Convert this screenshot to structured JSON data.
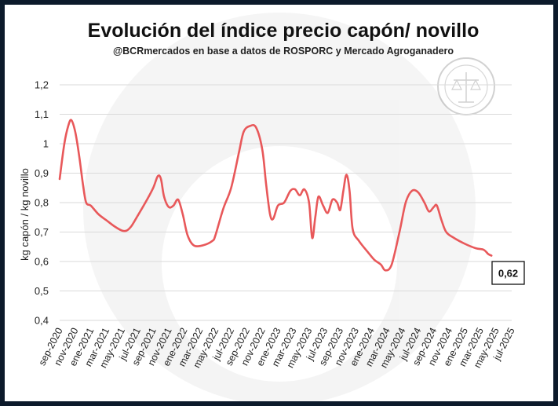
{
  "chart_data": {
    "type": "line",
    "title": "Evolución del índice precio capón/ novillo",
    "subtitle": "@BCRmercados  en base a datos de ROSPORC y Mercado Agroganadero",
    "ylabel": "kg capón / kg novillo",
    "xlabel": "",
    "ylim": [
      0.4,
      1.2
    ],
    "yticks": [
      "0,4",
      "0,5",
      "0,6",
      "0,7",
      "0,8",
      "0,9",
      "1",
      "1,1",
      "1,2"
    ],
    "ytick_values": [
      0.4,
      0.5,
      0.6,
      0.7,
      0.8,
      0.9,
      1.0,
      1.1,
      1.2
    ],
    "categories": [
      "sep-2020",
      "nov-2020",
      "ene-2021",
      "mar-2021",
      "may-2021",
      "jul-2021",
      "sep-2021",
      "nov-2021",
      "ene-2022",
      "mar-2022",
      "may-2022",
      "jul-2022",
      "sep-2022",
      "nov-2022",
      "ene-2023",
      "mar-2023",
      "may-2023",
      "jul-2023",
      "sep-2023",
      "nov-2023",
      "ene-2024",
      "mar-2024",
      "may-2024",
      "jul-2024",
      "sep-2024",
      "nov-2024",
      "ene-2025",
      "mar-2025",
      "may-2025",
      "jul-2025"
    ],
    "grid": true,
    "series": [
      {
        "color": "#e8585a",
        "points": [
          [
            0.0,
            0.88
          ],
          [
            0.3,
            1.0
          ],
          [
            0.55,
            1.06
          ],
          [
            0.75,
            1.08
          ],
          [
            1.0,
            1.04
          ],
          [
            1.25,
            0.96
          ],
          [
            1.5,
            0.86
          ],
          [
            1.7,
            0.8
          ],
          [
            2.0,
            0.79
          ],
          [
            2.5,
            0.76
          ],
          [
            3.0,
            0.74
          ],
          [
            3.5,
            0.72
          ],
          [
            4.0,
            0.705
          ],
          [
            4.3,
            0.705
          ],
          [
            4.6,
            0.72
          ],
          [
            5.0,
            0.755
          ],
          [
            5.5,
            0.8
          ],
          [
            6.0,
            0.85
          ],
          [
            6.3,
            0.89
          ],
          [
            6.5,
            0.88
          ],
          [
            6.7,
            0.82
          ],
          [
            7.0,
            0.785
          ],
          [
            7.3,
            0.79
          ],
          [
            7.6,
            0.81
          ],
          [
            7.9,
            0.76
          ],
          [
            8.2,
            0.69
          ],
          [
            8.6,
            0.655
          ],
          [
            9.2,
            0.655
          ],
          [
            9.8,
            0.67
          ],
          [
            10.0,
            0.69
          ],
          [
            10.5,
            0.78
          ],
          [
            11.0,
            0.85
          ],
          [
            11.5,
            0.97
          ],
          [
            11.8,
            1.04
          ],
          [
            12.2,
            1.06
          ],
          [
            12.6,
            1.055
          ],
          [
            13.0,
            0.98
          ],
          [
            13.25,
            0.86
          ],
          [
            13.5,
            0.76
          ],
          [
            13.7,
            0.745
          ],
          [
            14.0,
            0.79
          ],
          [
            14.4,
            0.8
          ],
          [
            14.8,
            0.84
          ],
          [
            15.1,
            0.845
          ],
          [
            15.4,
            0.825
          ],
          [
            15.7,
            0.845
          ],
          [
            16.0,
            0.8
          ],
          [
            16.2,
            0.68
          ],
          [
            16.4,
            0.75
          ],
          [
            16.6,
            0.82
          ],
          [
            16.9,
            0.79
          ],
          [
            17.2,
            0.765
          ],
          [
            17.5,
            0.81
          ],
          [
            17.8,
            0.8
          ],
          [
            18.0,
            0.775
          ],
          [
            18.2,
            0.84
          ],
          [
            18.4,
            0.895
          ],
          [
            18.6,
            0.84
          ],
          [
            18.8,
            0.71
          ],
          [
            19.2,
            0.67
          ],
          [
            19.8,
            0.63
          ],
          [
            20.2,
            0.605
          ],
          [
            20.6,
            0.59
          ],
          [
            20.9,
            0.57
          ],
          [
            21.3,
            0.59
          ],
          [
            21.8,
            0.7
          ],
          [
            22.2,
            0.8
          ],
          [
            22.6,
            0.84
          ],
          [
            23.0,
            0.835
          ],
          [
            23.4,
            0.8
          ],
          [
            23.7,
            0.77
          ],
          [
            24.0,
            0.785
          ],
          [
            24.2,
            0.79
          ],
          [
            24.5,
            0.74
          ],
          [
            24.8,
            0.7
          ],
          [
            25.3,
            0.68
          ],
          [
            26.0,
            0.66
          ],
          [
            26.7,
            0.645
          ],
          [
            27.2,
            0.64
          ],
          [
            27.5,
            0.625
          ],
          [
            27.7,
            0.62
          ]
        ]
      }
    ],
    "last_value_label": "0,62"
  }
}
